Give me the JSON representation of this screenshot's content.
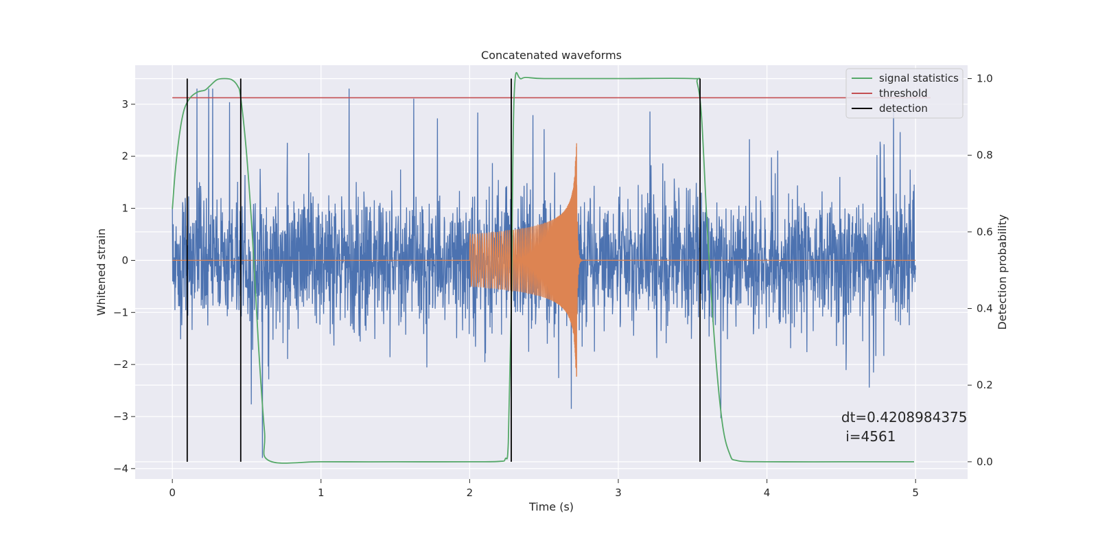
{
  "chart_data": {
    "type": "line",
    "title": "Concatenated waveforms",
    "xlabel": "Time (s)",
    "ylabel": "Whitened strain",
    "y2label": "Detection probability",
    "xlim": [
      -0.25,
      5.35
    ],
    "ylim": [
      -4.2,
      3.75
    ],
    "y2lim": [
      -0.045,
      1.035
    ],
    "xticks": [
      0,
      1,
      2,
      3,
      4,
      5
    ],
    "yticks": [
      -4,
      -3,
      -2,
      -1,
      0,
      1,
      2,
      3
    ],
    "y2ticks": [
      0.0,
      0.2,
      0.4,
      0.6,
      0.8,
      1.0
    ],
    "xtick_labels": [
      "0",
      "1",
      "2",
      "3",
      "4",
      "5"
    ],
    "ytick_labels": [
      "−4",
      "−3",
      "−2",
      "−1",
      "0",
      "1",
      "2",
      "3"
    ],
    "y2tick_labels": [
      "0.0",
      "0.2",
      "0.4",
      "0.6",
      "0.8",
      "1.0"
    ],
    "grid": true,
    "legend_position": "top-right",
    "colors": {
      "strain": "#4c72b0",
      "injected": "#dd8452",
      "signal_statistics": "#55a868",
      "threshold": "#c44e52",
      "detection": "#000000",
      "plot_bg": "#eaeaf2"
    },
    "strain": {
      "t_range": [
        0,
        5
      ],
      "typical_amplitude": 1.6,
      "peak_amplitude": 3.3
    },
    "injected_waveform": {
      "t_start": 2.0,
      "t_merger": 2.72,
      "amplitude_start": 0.5,
      "amplitude_peak": 2.25
    },
    "series": [
      {
        "name": "signal statistics",
        "axis": "right",
        "x": [
          0.0,
          0.02,
          0.05,
          0.08,
          0.12,
          0.17,
          0.22,
          0.25,
          0.3,
          0.35,
          0.4,
          0.44,
          0.46,
          0.5,
          0.54,
          0.58,
          0.62,
          0.65,
          1.0,
          1.5,
          2.0,
          2.2,
          2.24,
          2.26,
          2.28,
          2.3,
          2.35,
          2.5,
          3.0,
          3.5,
          3.53,
          3.56,
          3.6,
          3.65,
          3.7,
          3.75,
          3.8,
          4.0,
          4.5,
          4.99
        ],
        "y": [
          0.66,
          0.76,
          0.86,
          0.92,
          0.95,
          0.965,
          0.97,
          0.98,
          0.997,
          1.0,
          0.997,
          0.98,
          0.95,
          0.8,
          0.58,
          0.3,
          0.08,
          0.003,
          0.0,
          0.0,
          0.0,
          0.001,
          0.008,
          0.05,
          0.4,
          0.96,
          1.0,
          1.0,
          1.0,
          1.0,
          0.99,
          0.9,
          0.6,
          0.3,
          0.1,
          0.02,
          0.003,
          0.0,
          0.0,
          0.0
        ]
      },
      {
        "name": "threshold",
        "axis": "right",
        "x": [
          0.0,
          5.1
        ],
        "y": [
          0.95,
          0.95
        ]
      }
    ],
    "detections": {
      "name": "detection",
      "x": [
        0.1,
        0.46,
        2.28,
        3.55
      ],
      "y2_range": [
        0.0,
        1.0
      ]
    },
    "legend": [
      "signal statistics",
      "threshold",
      "detection"
    ],
    "annotation": {
      "line1": "dt=0.4208984375",
      "line2": " i=4561",
      "x": 4.5,
      "y": -3.0
    }
  }
}
